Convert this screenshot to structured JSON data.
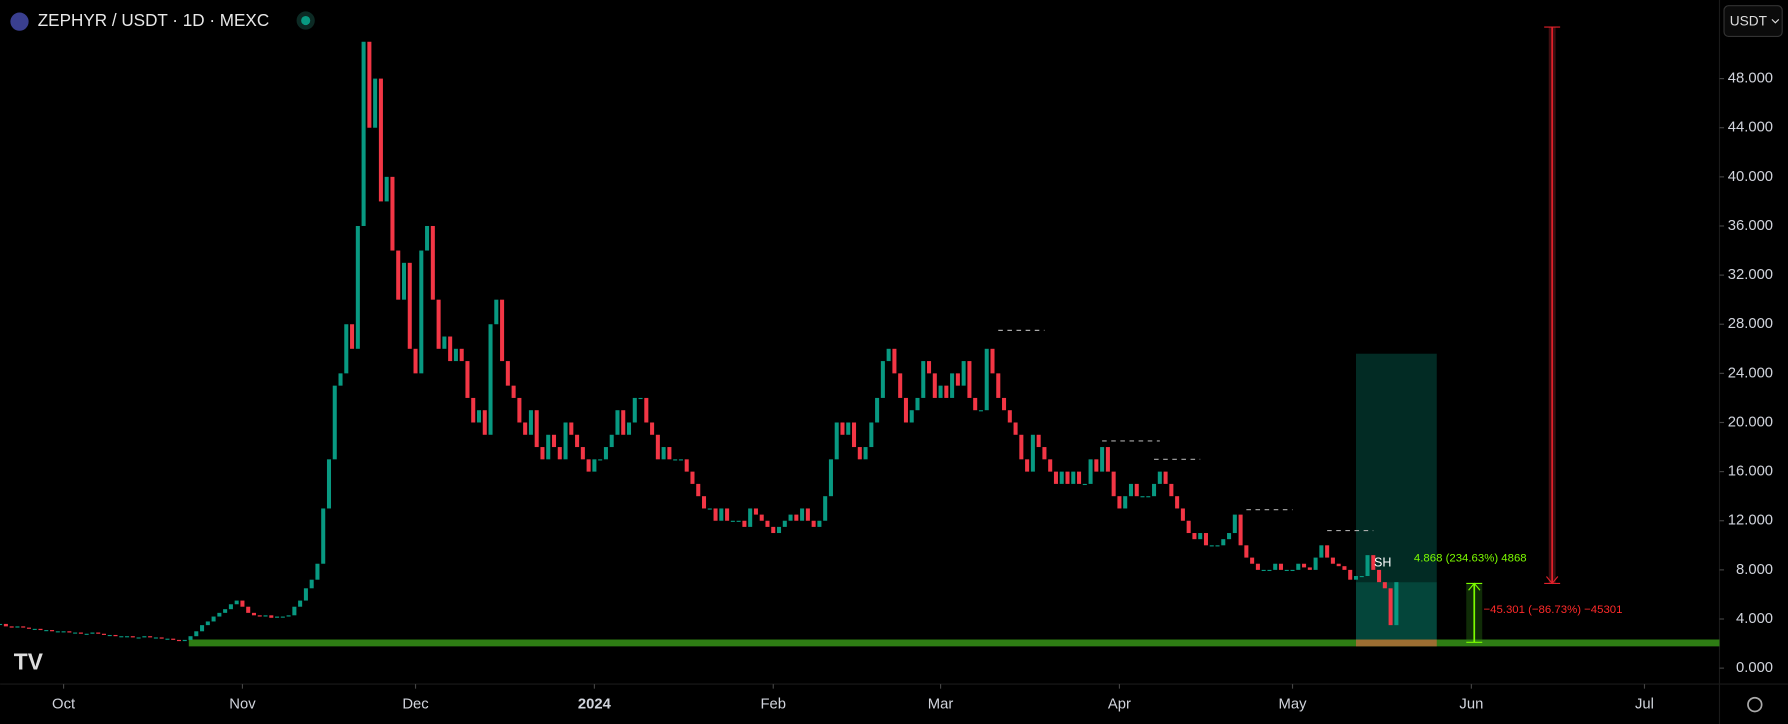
{
  "chart_data": {
    "type": "candlestick",
    "title": "ZEPHYR / USDT · 1D · MEXC",
    "currency_button": "USDT",
    "up_color": "#089981",
    "down_color": "#f23645",
    "values": [
      3.6,
      3.4,
      3.3,
      3.4,
      3.3,
      3.2,
      3.2,
      3.1,
      3.1,
      3.0,
      3.0,
      3.0,
      2.9,
      2.9,
      2.8,
      2.8,
      2.9,
      2.8,
      2.7,
      2.7,
      2.6,
      2.6,
      2.6,
      2.5,
      2.5,
      2.6,
      2.5,
      2.5,
      2.4,
      2.4,
      2.3,
      2.2,
      2.3,
      2.6,
      3.0,
      3.5,
      3.8,
      4.2,
      4.5,
      4.8,
      5.2,
      5.5,
      5.0,
      4.5,
      4.3,
      4.2,
      4.3,
      4.1,
      4.2,
      4.2,
      4.3,
      5.0,
      5.5,
      6.5,
      7.2,
      8.5,
      13,
      17,
      23,
      24,
      28,
      26,
      36,
      51,
      44,
      48,
      38,
      40,
      34,
      30,
      33,
      26,
      24,
      34,
      36,
      30,
      26,
      27,
      25,
      26,
      25,
      22,
      20,
      21,
      19,
      28,
      30,
      25,
      23,
      22,
      20,
      19,
      21,
      18,
      17,
      19,
      18,
      17,
      20,
      19,
      18,
      17,
      16,
      17,
      17,
      18,
      19,
      21,
      19,
      20,
      22,
      22,
      20,
      19,
      17,
      18,
      17,
      17,
      17,
      16,
      15,
      14,
      13,
      13,
      12,
      13,
      12,
      12,
      12,
      11.5,
      13,
      12.5,
      12,
      11.5,
      11,
      11.5,
      12,
      12.5,
      12,
      13,
      12,
      11.5,
      12,
      14,
      17,
      20,
      19,
      20,
      18,
      17,
      18,
      20,
      22,
      25,
      26,
      24,
      22,
      20,
      21,
      22,
      25,
      24,
      22,
      23,
      22,
      24,
      23,
      25,
      22,
      21,
      21,
      26,
      24,
      22,
      21,
      20,
      19,
      17,
      16,
      19,
      18,
      17,
      16,
      15,
      16,
      15,
      16,
      15,
      15,
      17,
      16,
      18,
      16,
      14,
      13,
      14,
      15,
      14,
      14,
      14,
      15,
      16,
      15,
      14,
      13,
      12,
      11,
      10.5,
      11,
      10,
      10,
      10,
      10.5,
      11,
      12.5,
      10,
      9,
      8.5,
      8,
      8,
      8,
      8.5,
      8,
      8,
      8,
      8.5,
      8.2,
      8,
      9,
      10,
      9,
      8.5,
      8.3,
      8,
      7.2,
      7.5,
      7.5,
      9.2,
      8,
      7,
      6.5,
      3.5,
      7.0
    ],
    "xlim": [
      0,
      298
    ],
    "xticks": [
      {
        "value": 11,
        "label": "Oct"
      },
      {
        "value": 42,
        "label": "Nov"
      },
      {
        "value": 72,
        "label": "Dec"
      },
      {
        "value": 103,
        "label": "2024"
      },
      {
        "value": 134,
        "label": "Feb"
      },
      {
        "value": 163,
        "label": "Mar"
      },
      {
        "value": 194,
        "label": "Apr"
      },
      {
        "value": 224,
        "label": "May"
      },
      {
        "value": 255,
        "label": "Jun"
      },
      {
        "value": 285,
        "label": "Jul"
      }
    ],
    "ylim": [
      -1.3,
      54.4
    ],
    "yticks": [
      {
        "value": 0,
        "label": "0.000"
      },
      {
        "value": 4,
        "label": "4.000"
      },
      {
        "value": 8,
        "label": "8.000"
      },
      {
        "value": 12,
        "label": "12.000"
      },
      {
        "value": 16,
        "label": "16.000"
      },
      {
        "value": 20,
        "label": "20.000"
      },
      {
        "value": 24,
        "label": "24.000"
      },
      {
        "value": 28,
        "label": "28.000"
      },
      {
        "value": 32,
        "label": "32.000"
      },
      {
        "value": 36,
        "label": "36.000"
      },
      {
        "value": 40,
        "label": "40.000"
      },
      {
        "value": 44,
        "label": "44.000"
      },
      {
        "value": 48,
        "label": "48.000"
      }
    ],
    "support": {
      "y": 2.05,
      "x": [
        32.7,
        298
      ]
    },
    "levels": [
      {
        "y": 27.5,
        "x": [
          173,
          181
        ]
      },
      {
        "y": 18.5,
        "x": [
          191,
          201
        ]
      },
      {
        "y": 17.0,
        "x": [
          200,
          208
        ]
      },
      {
        "y": 12.9,
        "x": [
          216,
          224
        ]
      },
      {
        "y": 11.2,
        "x": [
          230,
          238
        ]
      }
    ],
    "position": {
      "x": [
        235,
        249
      ],
      "target": 25.6,
      "entry": 7.0,
      "stop": 2.05
    },
    "measure_down": {
      "x": 269,
      "y": [
        52.2,
        6.9
      ]
    },
    "measure_up": {
      "x": 255.5,
      "y": [
        6.9,
        2.1
      ]
    },
    "marker": "SH",
    "annotations": [
      "4.868 (234.63%) 4868",
      "−45.301 (−86.73%) −45301"
    ]
  }
}
